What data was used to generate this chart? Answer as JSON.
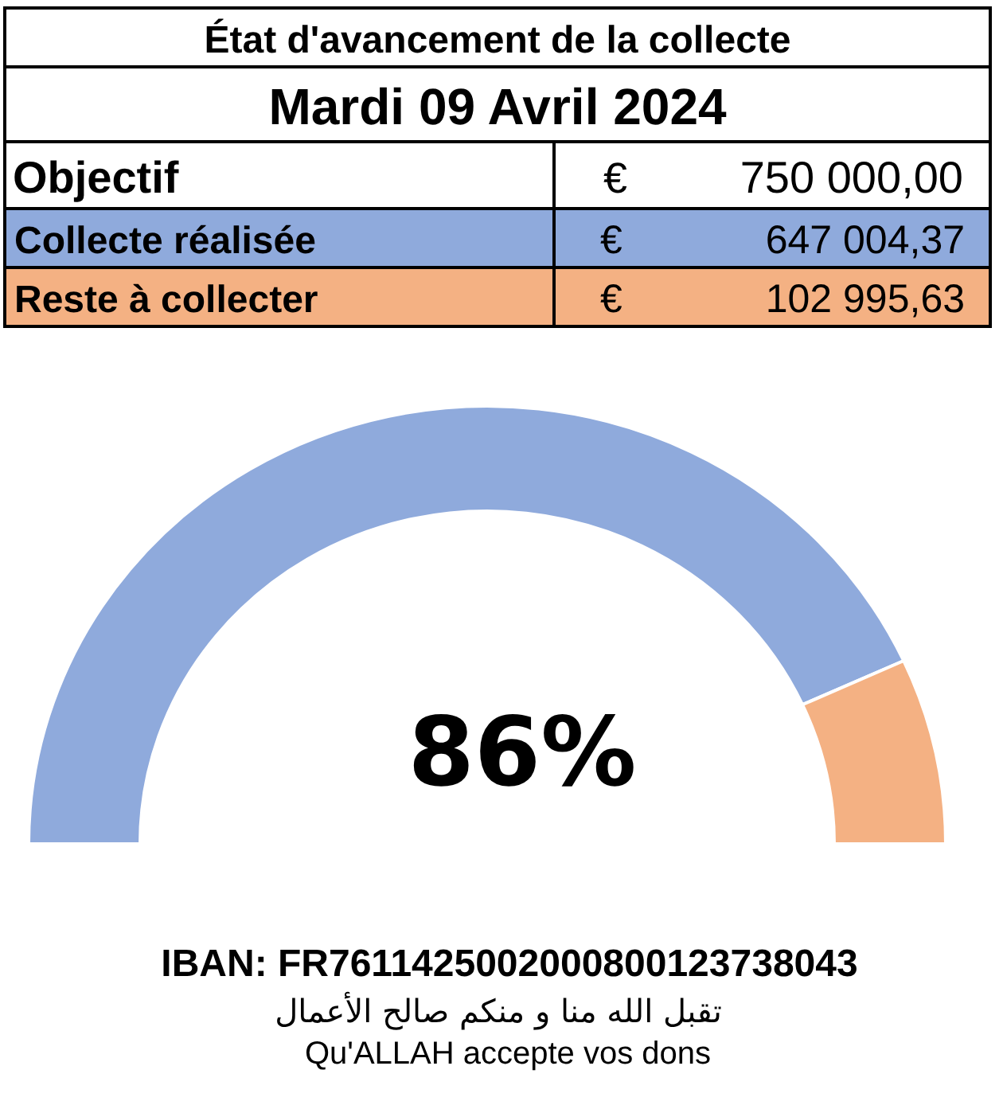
{
  "chart_data": {
    "type": "donut",
    "title": "État d'avancement de la collecte",
    "subtitle": "Mardi 09 Avril 2024",
    "categories": [
      "Collecte réalisée",
      "Reste à collecter"
    ],
    "values": [
      647004.37,
      102995.63
    ],
    "colors": [
      "#8faadc",
      "#f4b183"
    ],
    "value_labels": [
      "647 004,37",
      "102 995,63"
    ],
    "legend": "top",
    "annotations": [
      "Objectif",
      "€",
      "750 000,00",
      "€",
      "€",
      "86%",
      "IBAN: FR7611425002000800123738043",
      "تقبل الله منا و منكم صالح الأعمال",
      "Qu'ALLAH accepte vos dons"
    ]
  }
}
